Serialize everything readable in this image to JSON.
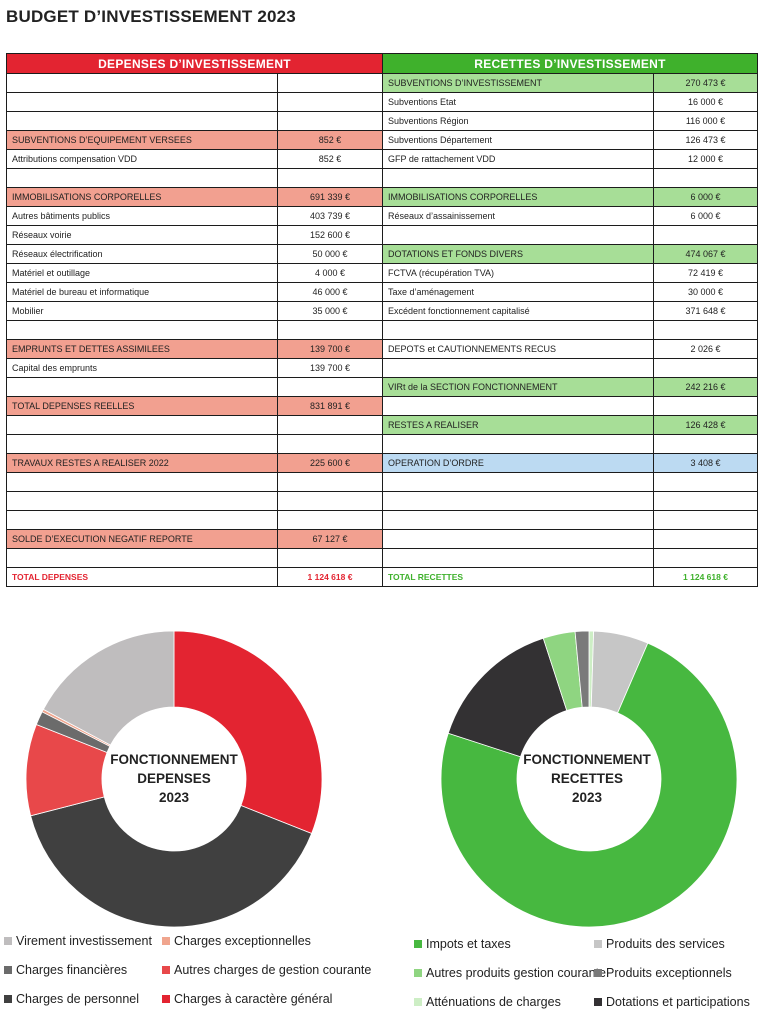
{
  "title": "BUDGET D’INVESTISSEMENT 2023",
  "depenses": {
    "header": "DEPENSES D’INVESTISSEMENT",
    "rows": [
      {
        "label": "",
        "value": "",
        "style": ""
      },
      {
        "label": "",
        "value": "",
        "style": ""
      },
      {
        "label": "",
        "value": "",
        "style": ""
      },
      {
        "label": "SUBVENTIONS D’EQUIPEMENT VERSEES",
        "value": "852 €",
        "style": "red"
      },
      {
        "label": "Attributions compensation VDD",
        "value": "852 €",
        "style": ""
      },
      {
        "label": "",
        "value": "",
        "style": ""
      },
      {
        "label": "IMMOBILISATIONS CORPORELLES",
        "value": "691 339 €",
        "style": "red"
      },
      {
        "label": "Autres bâtiments publics",
        "value": "403 739 €",
        "style": ""
      },
      {
        "label": "Réseaux voirie",
        "value": "152 600 €",
        "style": ""
      },
      {
        "label": "Réseaux électrification",
        "value": "50 000 €",
        "style": ""
      },
      {
        "label": "Matériel et outillage",
        "value": "4 000 €",
        "style": ""
      },
      {
        "label": "Matériel de bureau et informatique",
        "value": "46 000 €",
        "style": ""
      },
      {
        "label": "Mobilier",
        "value": "35 000 €",
        "style": ""
      },
      {
        "label": "",
        "value": "",
        "style": ""
      },
      {
        "label": "EMPRUNTS ET DETTES ASSIMILEES",
        "value": "139 700 €",
        "style": "red"
      },
      {
        "label": "Capital des emprunts",
        "value": "139 700 €",
        "style": ""
      },
      {
        "label": "",
        "value": "",
        "style": ""
      },
      {
        "label": "TOTAL DEPENSES  REELLES",
        "value": "831 891 €",
        "style": "red"
      },
      {
        "label": "",
        "value": "",
        "style": ""
      },
      {
        "label": "",
        "value": "",
        "style": ""
      },
      {
        "label": "TRAVAUX RESTES A REALISER 2022",
        "value": "225 600 €",
        "style": "red"
      },
      {
        "label": "",
        "value": "",
        "style": ""
      },
      {
        "label": "",
        "value": "",
        "style": ""
      },
      {
        "label": "",
        "value": "",
        "style": ""
      },
      {
        "label": "SOLDE D’EXECUTION NEGATIF REPORTE",
        "value": "67 127 €",
        "style": "red"
      },
      {
        "label": "",
        "value": "",
        "style": ""
      },
      {
        "label": "TOTAL DEPENSES",
        "value": "1 124 618 €",
        "style": "totr"
      }
    ]
  },
  "recettes": {
    "header": "RECETTES D’INVESTISSEMENT",
    "rows": [
      {
        "label": "SUBVENTIONS D’INVESTISSEMENT",
        "value": "270 473 €",
        "style": "green"
      },
      {
        "label": "Subventions Etat",
        "value": "16 000 €",
        "style": ""
      },
      {
        "label": "Subventions Région",
        "value": "116 000 €",
        "style": ""
      },
      {
        "label": "Subventions Département",
        "value": "126 473 €",
        "style": ""
      },
      {
        "label": "GFP de rattachement VDD",
        "value": "12 000 €",
        "style": ""
      },
      {
        "label": "",
        "value": "",
        "style": ""
      },
      {
        "label": "IMMOBILISATIONS CORPORELLES",
        "value": "6 000 €",
        "style": "green"
      },
      {
        "label": "Réseaux d’assainissement",
        "value": "6 000 €",
        "style": ""
      },
      {
        "label": "",
        "value": "",
        "style": ""
      },
      {
        "label": "DOTATIONS ET FONDS DIVERS",
        "value": "474 067 €",
        "style": "green"
      },
      {
        "label": "FCTVA (récupération TVA)",
        "value": "72 419 €",
        "style": ""
      },
      {
        "label": "Taxe d’aménagement",
        "value": "30 000 €",
        "style": ""
      },
      {
        "label": "Excédent fonctionnement capitalisé",
        "value": "371 648 €",
        "style": ""
      },
      {
        "label": "",
        "value": "",
        "style": ""
      },
      {
        "label": "DEPOTS et CAUTIONNEMENTS RECUS",
        "value": "2 026 €",
        "style": ""
      },
      {
        "label": "",
        "value": "",
        "style": ""
      },
      {
        "label": "VIRt de la  SECTION FONCTIONNEMENT",
        "value": "242 216 €",
        "style": "green"
      },
      {
        "label": "",
        "value": "",
        "style": ""
      },
      {
        "label": "RESTES A REALISER",
        "value": "126 428 €",
        "style": "green"
      },
      {
        "label": "",
        "value": "",
        "style": ""
      },
      {
        "label": "OPERATION D’ORDRE",
        "value": "3 408 €",
        "style": "blue"
      },
      {
        "label": "",
        "value": "",
        "style": ""
      },
      {
        "label": "",
        "value": "",
        "style": ""
      },
      {
        "label": "",
        "value": "",
        "style": ""
      },
      {
        "label": "",
        "value": "",
        "style": ""
      },
      {
        "label": "",
        "value": "",
        "style": ""
      },
      {
        "label": "TOTAL RECETTES",
        "value": "1 124 618 €",
        "style": "totg"
      }
    ]
  },
  "chart_data": [
    {
      "type": "pie",
      "title_lines": [
        "FONCTIONNEMENT",
        "DEPENSES",
        "2023"
      ],
      "series": [
        {
          "name": "Charges à caractère général",
          "value": 31,
          "color": "#e32431"
        },
        {
          "name": "Charges de personnel",
          "value": 40,
          "color": "#404040"
        },
        {
          "name": "Autres charges de gestion courante",
          "value": 10,
          "color": "#e8484a"
        },
        {
          "name": "Charges financières",
          "value": 1.5,
          "color": "#6b6b6b"
        },
        {
          "name": "Charges exceptionnelles",
          "value": 0.3,
          "color": "#f0a58e"
        },
        {
          "name": "Virement investissement",
          "value": 17.2,
          "color": "#bfbdbe"
        }
      ],
      "legend": [
        {
          "name": "Virement investissement",
          "color": "#bfbdbe"
        },
        {
          "name": "Charges exceptionnelles",
          "color": "#f0a58e"
        },
        {
          "name": "Charges financières",
          "color": "#6b6b6b"
        },
        {
          "name": "Autres charges de gestion courante",
          "color": "#e8484a"
        },
        {
          "name": "Charges de personnel",
          "color": "#404040"
        },
        {
          "name": "Charges à caractère général",
          "color": "#e32431"
        }
      ]
    },
    {
      "type": "pie",
      "title_lines": [
        "FONCTIONNEMENT",
        "RECETTES",
        "2023"
      ],
      "series": [
        {
          "name": "Atténuations de charges",
          "value": 0.5,
          "color": "#cdeec5"
        },
        {
          "name": "Produits des services",
          "value": 6,
          "color": "#c6c6c6"
        },
        {
          "name": "Impots et taxes",
          "value": 73.5,
          "color": "#47b840"
        },
        {
          "name": "Dotations et participations",
          "value": 15,
          "color": "#333133"
        },
        {
          "name": "Autres produits gestion courante",
          "value": 3.5,
          "color": "#8fd581"
        },
        {
          "name": "Produits exceptionnels",
          "value": 1.5,
          "color": "#7a7a7a"
        }
      ],
      "legend": [
        {
          "name": "Impots et taxes",
          "color": "#47b840"
        },
        {
          "name": "Produits des services",
          "color": "#c6c6c6"
        },
        {
          "name": "Autres produits gestion courante",
          "color": "#8fd581"
        },
        {
          "name": "Produits exceptionnels",
          "color": "#7a7a7a"
        },
        {
          "name": "Atténuations de charges",
          "color": "#cdeec5"
        },
        {
          "name": "Dotations et participations",
          "color": "#333133"
        }
      ]
    }
  ]
}
